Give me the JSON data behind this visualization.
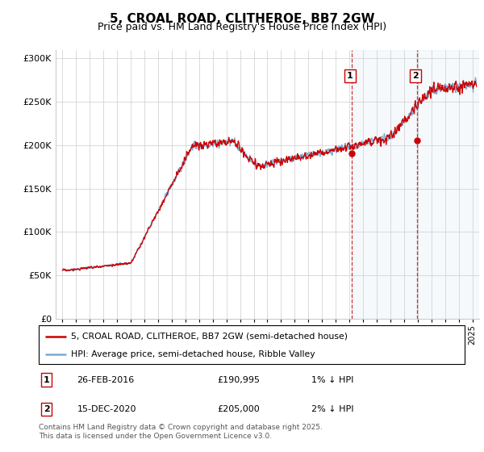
{
  "title": "5, CROAL ROAD, CLITHEROE, BB7 2GW",
  "subtitle": "Price paid vs. HM Land Registry's House Price Index (HPI)",
  "legend_line1": "5, CROAL ROAD, CLITHEROE, BB7 2GW (semi-detached house)",
  "legend_line2": "HPI: Average price, semi-detached house, Ribble Valley",
  "footer": "Contains HM Land Registry data © Crown copyright and database right 2025.\nThis data is licensed under the Open Government Licence v3.0.",
  "annotation1": {
    "label": "1",
    "date": "26-FEB-2016",
    "price": "£190,995",
    "note": "1% ↓ HPI"
  },
  "annotation2": {
    "label": "2",
    "date": "15-DEC-2020",
    "price": "£205,000",
    "note": "2% ↓ HPI"
  },
  "sale1_x": 2016.15,
  "sale1_y": 190995,
  "sale2_x": 2020.96,
  "sale2_y": 205000,
  "hpi_color": "#7aabd4",
  "price_color": "#cc0000",
  "vline_color": "#cc0000",
  "shade_color": "#ddeeff",
  "ylim": [
    0,
    310000
  ],
  "xlim_start": 1994.5,
  "xlim_end": 2025.5,
  "yticks": [
    0,
    50000,
    100000,
    150000,
    200000,
    250000,
    300000
  ]
}
